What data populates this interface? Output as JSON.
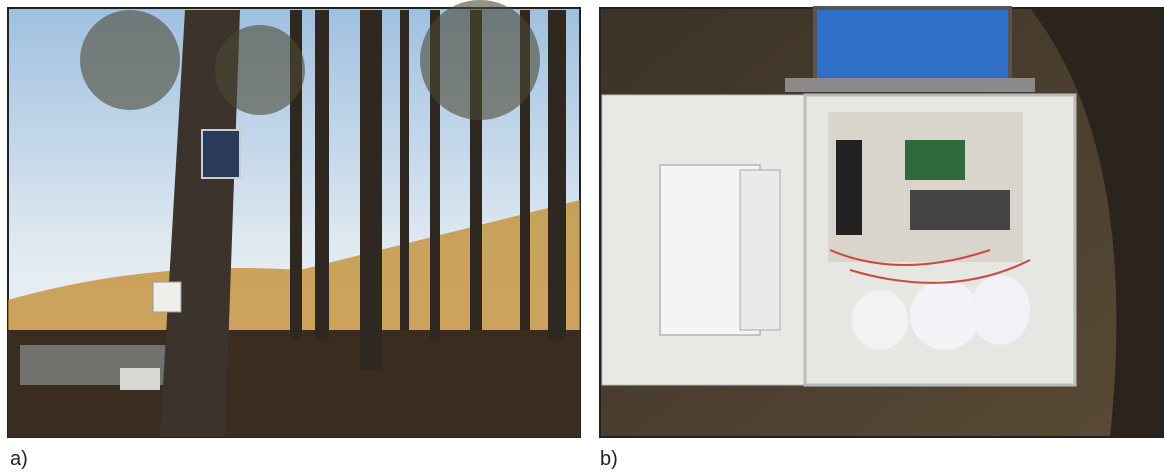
{
  "panels": [
    {
      "label": "a)"
    },
    {
      "label": "b)"
    }
  ]
}
